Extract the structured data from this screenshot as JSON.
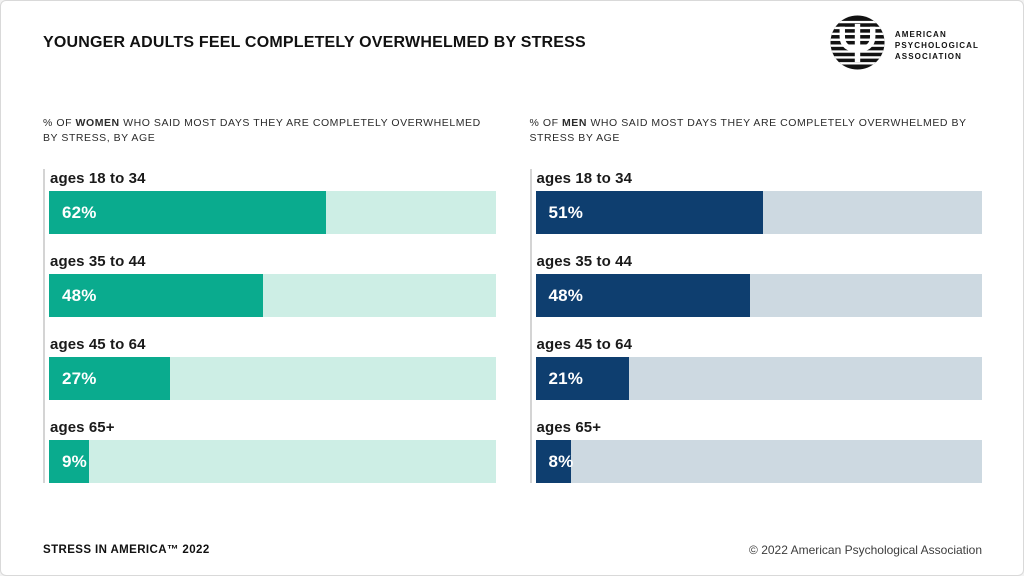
{
  "page": {
    "title": "YOUNGER ADULTS FEEL COMPLETELY OVERWHELMED BY STRESS",
    "footer_left": "STRESS IN AMERICA™ 2022",
    "footer_right": "© 2022 American Psychological Association"
  },
  "logo": {
    "icon": "apa-psi-striped-circle",
    "lines": [
      "AMERICAN",
      "PSYCHOLOGICAL",
      "ASSOCIATION"
    ]
  },
  "colors": {
    "women_fill": "#0aab8e",
    "women_track": "#cdeee5",
    "men_fill": "#0e3e6f",
    "men_track": "#cdd9e1"
  },
  "chart_data": [
    {
      "type": "bar",
      "orientation": "horizontal",
      "group": "women",
      "subtitle": {
        "prefix": "% OF ",
        "bold": "WOMEN",
        "suffix": " WHO SAID MOST DAYS THEY ARE COMPLETELY OVERWHELMED BY STRESS, BY AGE"
      },
      "categories": [
        "ages 18 to 34",
        "ages 35 to 44",
        "ages 45 to 64",
        "ages 65+"
      ],
      "values": [
        62,
        48,
        27,
        9
      ],
      "value_labels": [
        "62%",
        "48%",
        "27%",
        "9%"
      ],
      "xlim": [
        0,
        100
      ],
      "bar_color": "#0aab8e",
      "track_color": "#cdeee5",
      "grid": false,
      "legend": "none"
    },
    {
      "type": "bar",
      "orientation": "horizontal",
      "group": "men",
      "subtitle": {
        "prefix": "% OF ",
        "bold": "MEN",
        "suffix": " WHO SAID MOST DAYS THEY ARE COMPLETELY OVERWHELMED BY STRESS BY AGE"
      },
      "categories": [
        "ages 18 to 34",
        "ages 35 to 44",
        "ages 45 to 64",
        "ages 65+"
      ],
      "values": [
        51,
        48,
        21,
        8
      ],
      "value_labels": [
        "51%",
        "48%",
        "21%",
        "8%"
      ],
      "xlim": [
        0,
        100
      ],
      "bar_color": "#0e3e6f",
      "track_color": "#cdd9e1",
      "grid": false,
      "legend": "none"
    }
  ]
}
